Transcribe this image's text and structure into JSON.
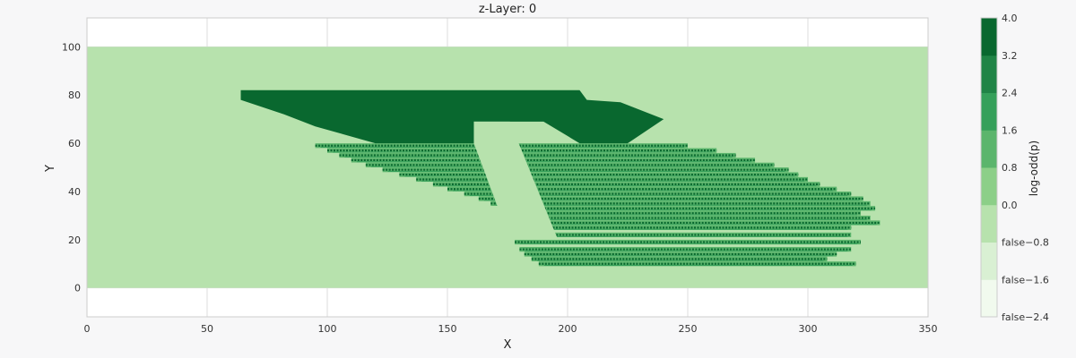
{
  "chart_data": {
    "type": "heatmap",
    "title": "z-Layer: 0",
    "xlabel": "X",
    "ylabel": "Y",
    "xlim": [
      0,
      350
    ],
    "ylim": [
      -12,
      112
    ],
    "grid": true,
    "x_ticks": [
      0,
      50,
      100,
      150,
      200,
      250,
      300,
      350
    ],
    "y_ticks": [
      0,
      20,
      40,
      60,
      80,
      100
    ],
    "data_extent": {
      "x": [
        0,
        350
      ],
      "y": [
        0,
        100
      ]
    },
    "background_level": "-0.8 to 0.0",
    "colorbar": {
      "label": "log-odd(p)",
      "levels": [
        -2.4,
        -1.6,
        -0.8,
        0.0,
        0.8,
        1.6,
        2.4,
        3.2,
        4.0
      ],
      "colors": [
        "#f1faee",
        "#d9f0d3",
        "#b7e2ad",
        "#8ccf88",
        "#5bb56c",
        "#35a05a",
        "#208446",
        "#09682f",
        "#00441b"
      ]
    },
    "regions": [
      {
        "level": "3.2 to 4.0",
        "description": "solid occupied block",
        "polygon": [
          [
            64,
            82
          ],
          [
            205,
            82
          ],
          [
            208,
            78
          ],
          [
            222,
            77
          ],
          [
            240,
            70
          ],
          [
            225,
            60
          ],
          [
            205,
            60
          ],
          [
            190,
            69
          ],
          [
            161,
            69
          ],
          [
            161,
            60
          ],
          [
            120,
            60
          ],
          [
            95,
            67
          ],
          [
            82,
            72
          ],
          [
            64,
            78
          ]
        ]
      }
    ],
    "streaks": [
      {
        "y": 59,
        "x0": 95,
        "x1": 250
      },
      {
        "y": 57,
        "x0": 100,
        "x1": 262
      },
      {
        "y": 55,
        "x0": 105,
        "x1": 270
      },
      {
        "y": 53,
        "x0": 110,
        "x1": 278
      },
      {
        "y": 51,
        "x0": 116,
        "x1": 286
      },
      {
        "y": 49,
        "x0": 123,
        "x1": 292
      },
      {
        "y": 47,
        "x0": 130,
        "x1": 296
      },
      {
        "y": 45,
        "x0": 137,
        "x1": 300
      },
      {
        "y": 43,
        "x0": 144,
        "x1": 305
      },
      {
        "y": 41,
        "x0": 150,
        "x1": 312
      },
      {
        "y": 39,
        "x0": 157,
        "x1": 318
      },
      {
        "y": 37,
        "x0": 163,
        "x1": 323
      },
      {
        "y": 35,
        "x0": 168,
        "x1": 326
      },
      {
        "y": 33,
        "x0": 172,
        "x1": 328
      },
      {
        "y": 31,
        "x0": 176,
        "x1": 322
      },
      {
        "y": 29,
        "x0": 180,
        "x1": 326
      },
      {
        "y": 27,
        "x0": 184,
        "x1": 330
      },
      {
        "y": 25,
        "x0": 186,
        "x1": 318
      },
      {
        "y": 22,
        "x0": 177,
        "x1": 318
      },
      {
        "y": 19,
        "x0": 178,
        "x1": 322
      },
      {
        "y": 16,
        "x0": 180,
        "x1": 318
      },
      {
        "y": 14,
        "x0": 182,
        "x1": 312
      },
      {
        "y": 12,
        "x0": 185,
        "x1": 308
      },
      {
        "y": 10,
        "x0": 188,
        "x1": 320
      }
    ],
    "gaps": [
      {
        "description": "free corridor",
        "polygon": [
          [
            161,
            69
          ],
          [
            176,
            69
          ],
          [
            196,
            20
          ],
          [
            176,
            20
          ],
          [
            161,
            60
          ]
        ]
      }
    ]
  }
}
